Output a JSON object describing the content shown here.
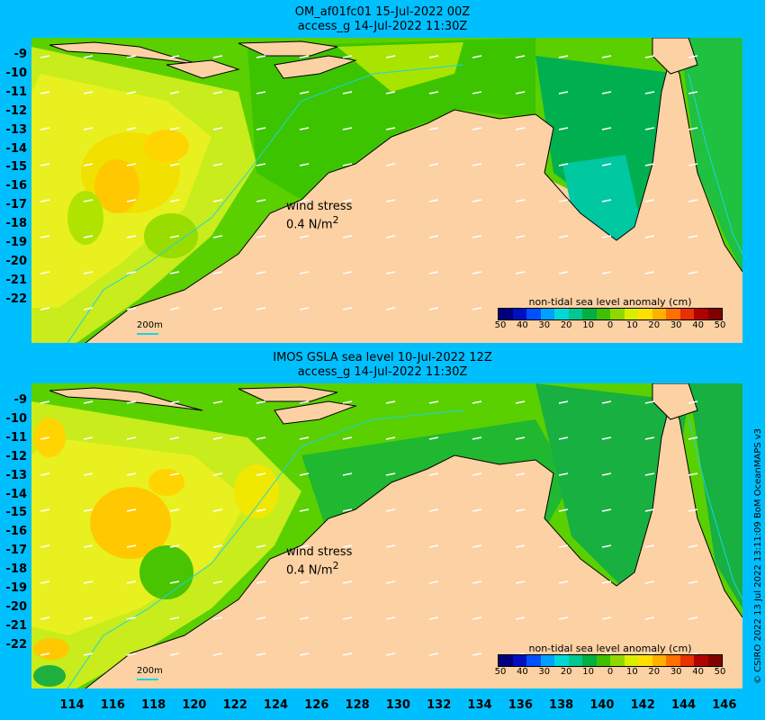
{
  "top_panel": {
    "title_line1": "OM_af01fc01 15-Jul-2022 00Z",
    "title_line2": "access_g 14-Jul-2022 11:30Z",
    "wind_label": "wind stress",
    "wind_value": "0.4 N/m",
    "wind_sup": "2",
    "colorbar_title": "non-tidal sea level anomaly (cm)",
    "scale_label": "200m"
  },
  "bottom_panel": {
    "title_line1": "IMOS GSLA sea level  10-Jul-2022 12Z",
    "title_line2": "access_g 14-Jul-2022 11:30Z",
    "wind_label": "wind stress",
    "wind_value": "0.4 N/m",
    "wind_sup": "2",
    "colorbar_title": "non-tidal sea level anomaly (cm)",
    "scale_label": "200m"
  },
  "colorbar_ticks": [
    "50",
    "40",
    "30",
    "20",
    "10",
    "0",
    "10",
    "20",
    "30",
    "40",
    "50"
  ],
  "colorbar_colors": [
    "#00007f",
    "#0010c0",
    "#0050ff",
    "#00a0ff",
    "#00d8d8",
    "#00c890",
    "#00b040",
    "#40c000",
    "#90d800",
    "#d8f000",
    "#ffe000",
    "#ffb000",
    "#ff7000",
    "#e83000",
    "#b00000",
    "#800000"
  ],
  "lat_labels": [
    "-9",
    "-10",
    "-11",
    "-12",
    "-13",
    "-14",
    "-15",
    "-16",
    "-17",
    "-18",
    "-19",
    "-20",
    "-21",
    "-22"
  ],
  "lon_labels": [
    "114",
    "116",
    "118",
    "120",
    "122",
    "124",
    "126",
    "128",
    "130",
    "132",
    "134",
    "136",
    "138",
    "140",
    "142",
    "144",
    "146"
  ],
  "credit": "© CSIRO 2022   13 Jul 2022 13:11:09 BoM OceanMAPS v3",
  "colors": {
    "background": "#00bfff",
    "land": "#fcd1a4",
    "contour": "#19d4e6"
  }
}
